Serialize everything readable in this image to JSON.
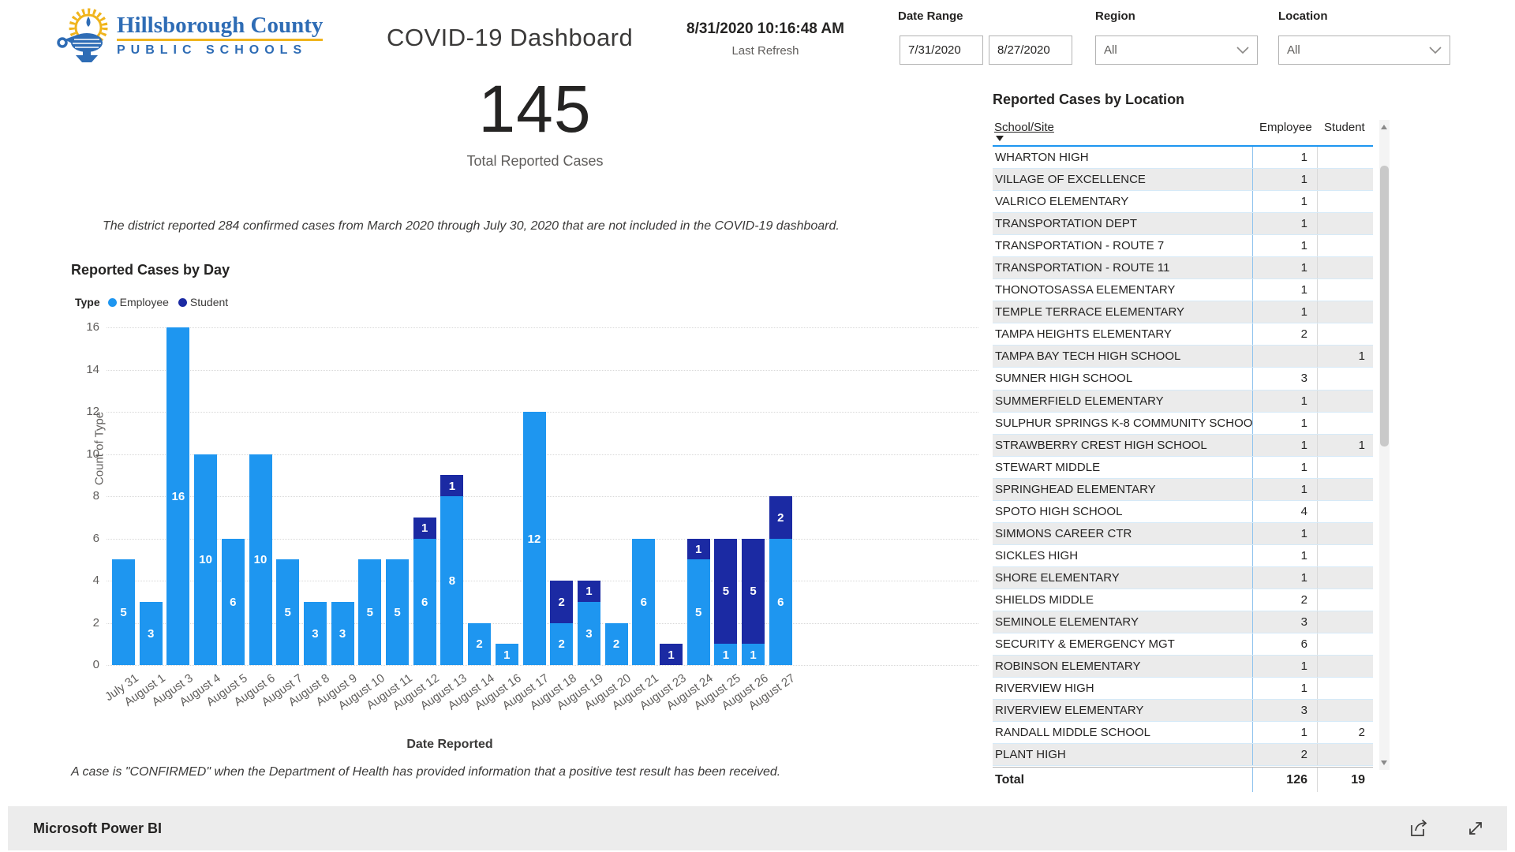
{
  "header": {
    "logo": {
      "line1": "Hillsborough County",
      "line2": "PUBLIC SCHOOLS",
      "icon": "lamp-sunburst-icon",
      "blue": "#2e6cb5",
      "gold": "#f0b41c"
    },
    "title": "COVID-19 Dashboard",
    "refresh_time": "8/31/2020 10:16:48 AM",
    "refresh_label": "Last Refresh",
    "filters": {
      "date_range_label": "Date Range",
      "date_start": "7/31/2020",
      "date_end": "8/27/2020",
      "region_label": "Region",
      "region_value": "All",
      "location_label": "Location",
      "location_value": "All"
    }
  },
  "kpi": {
    "value": "145",
    "label": "Total Reported Cases"
  },
  "note": "The district reported 284 confirmed cases from March 2020 through July 30, 2020 that are not included in the COVID-19 dashboard.",
  "footnote": "A case is \"CONFIRMED\" when the Department of Health has provided information that a positive test result has been received.",
  "chart_data": {
    "type": "bar",
    "stacked": true,
    "title": "Reported Cases by Day",
    "legend_title": "Type",
    "legend_position": "top-left",
    "xlabel": "Date Reported",
    "ylabel": "Count of Type",
    "ylim": [
      0,
      16
    ],
    "yticks": [
      0,
      2,
      4,
      6,
      8,
      10,
      12,
      14,
      16
    ],
    "grid": "dotted-horizontal",
    "categories": [
      "July 31",
      "August 1",
      "August 3",
      "August 4",
      "August 5",
      "August 6",
      "August 7",
      "August 8",
      "August 9",
      "August 10",
      "August 11",
      "August 12",
      "August 13",
      "August 14",
      "August 16",
      "August 17",
      "August 18",
      "August 19",
      "August 20",
      "August 21",
      "August 23",
      "August 24",
      "August 25",
      "August 26",
      "August 27"
    ],
    "series": [
      {
        "name": "Employee",
        "color": "#1E96F0",
        "values": [
          5,
          3,
          16,
          10,
          6,
          10,
          5,
          3,
          3,
          5,
          5,
          6,
          8,
          2,
          1,
          12,
          2,
          3,
          2,
          6,
          0,
          5,
          1,
          1,
          6
        ]
      },
      {
        "name": "Student",
        "color": "#1B2AA3",
        "values": [
          0,
          0,
          0,
          0,
          0,
          0,
          0,
          0,
          0,
          0,
          0,
          1,
          1,
          0,
          0,
          0,
          2,
          1,
          0,
          0,
          1,
          1,
          5,
          5,
          2
        ]
      }
    ]
  },
  "table": {
    "title": "Reported Cases by Location",
    "columns": [
      "School/Site",
      "Employee",
      "Student"
    ],
    "sorted_by": "School/Site descending",
    "rows": [
      [
        "WHARTON HIGH",
        "1",
        ""
      ],
      [
        "VILLAGE OF EXCELLENCE",
        "1",
        ""
      ],
      [
        "VALRICO ELEMENTARY",
        "1",
        ""
      ],
      [
        "TRANSPORTATION DEPT",
        "1",
        ""
      ],
      [
        "TRANSPORTATION - ROUTE 7",
        "1",
        ""
      ],
      [
        "TRANSPORTATION - ROUTE 11",
        "1",
        ""
      ],
      [
        "THONOTOSASSA ELEMENTARY",
        "1",
        ""
      ],
      [
        "TEMPLE TERRACE ELEMENTARY",
        "1",
        ""
      ],
      [
        "TAMPA HEIGHTS ELEMENTARY",
        "2",
        ""
      ],
      [
        "TAMPA BAY TECH HIGH SCHOOL",
        "",
        "1"
      ],
      [
        "SUMNER HIGH SCHOOL",
        "3",
        ""
      ],
      [
        "SUMMERFIELD ELEMENTARY",
        "1",
        ""
      ],
      [
        "SULPHUR SPRINGS K-8 COMMUNITY SCHOOL",
        "1",
        ""
      ],
      [
        "STRAWBERRY CREST HIGH SCHOOL",
        "1",
        "1"
      ],
      [
        "STEWART MIDDLE",
        "1",
        ""
      ],
      [
        "SPRINGHEAD ELEMENTARY",
        "1",
        ""
      ],
      [
        "SPOTO HIGH SCHOOL",
        "4",
        ""
      ],
      [
        "SIMMONS CAREER CTR",
        "1",
        ""
      ],
      [
        "SICKLES HIGH",
        "1",
        ""
      ],
      [
        "SHORE ELEMENTARY",
        "1",
        ""
      ],
      [
        "SHIELDS MIDDLE",
        "2",
        ""
      ],
      [
        "SEMINOLE ELEMENTARY",
        "3",
        ""
      ],
      [
        "SECURITY & EMERGENCY MGT",
        "6",
        ""
      ],
      [
        "ROBINSON ELEMENTARY",
        "1",
        ""
      ],
      [
        "RIVERVIEW HIGH",
        "1",
        ""
      ],
      [
        "RIVERVIEW ELEMENTARY",
        "3",
        ""
      ],
      [
        "RANDALL MIDDLE SCHOOL",
        "1",
        "2"
      ],
      [
        "PLANT HIGH",
        "2",
        ""
      ]
    ],
    "total": {
      "label": "Total",
      "employee": "126",
      "student": "19"
    }
  },
  "footer": {
    "brand": "Microsoft Power BI",
    "icons": [
      "share-icon",
      "fullscreen-icon"
    ]
  }
}
